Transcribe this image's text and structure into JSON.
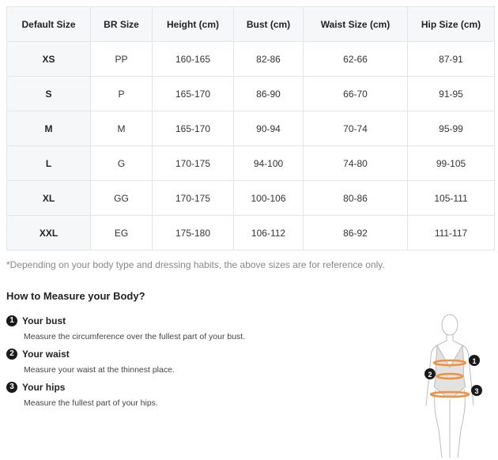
{
  "table": {
    "headers": [
      "Default Size",
      "BR Size",
      "Height (cm)",
      "Bust (cm)",
      "Waist Size (cm)",
      "Hip Size (cm)"
    ],
    "rows": [
      [
        "XS",
        "PP",
        "160-165",
        "82-86",
        "62-66",
        "87-91"
      ],
      [
        "S",
        "P",
        "165-170",
        "86-90",
        "66-70",
        "91-95"
      ],
      [
        "M",
        "M",
        "165-170",
        "90-94",
        "70-74",
        "95-99"
      ],
      [
        "L",
        "G",
        "170-175",
        "94-100",
        "74-80",
        "99-105"
      ],
      [
        "XL",
        "GG",
        "170-175",
        "100-106",
        "80-86",
        "105-111"
      ],
      [
        "XXL",
        "EG",
        "175-180",
        "106-112",
        "86-92",
        "111-117"
      ]
    ]
  },
  "note": "*Depending on your body type and dressing habits, the above sizes are for reference only.",
  "measure": {
    "title": "How to Measure your Body?",
    "steps": [
      {
        "num": "1",
        "title": "Your bust",
        "desc": "Measure the circumference over the fullest part of your bust."
      },
      {
        "num": "2",
        "title": "Your waist",
        "desc": "Measure your waist at the thinnest place."
      },
      {
        "num": "3",
        "title": "Your hips",
        "desc": "Measure the fullest part of your hips."
      }
    ]
  },
  "colors": {
    "accent": "#f0913e",
    "badge": "#1a1a1a"
  }
}
